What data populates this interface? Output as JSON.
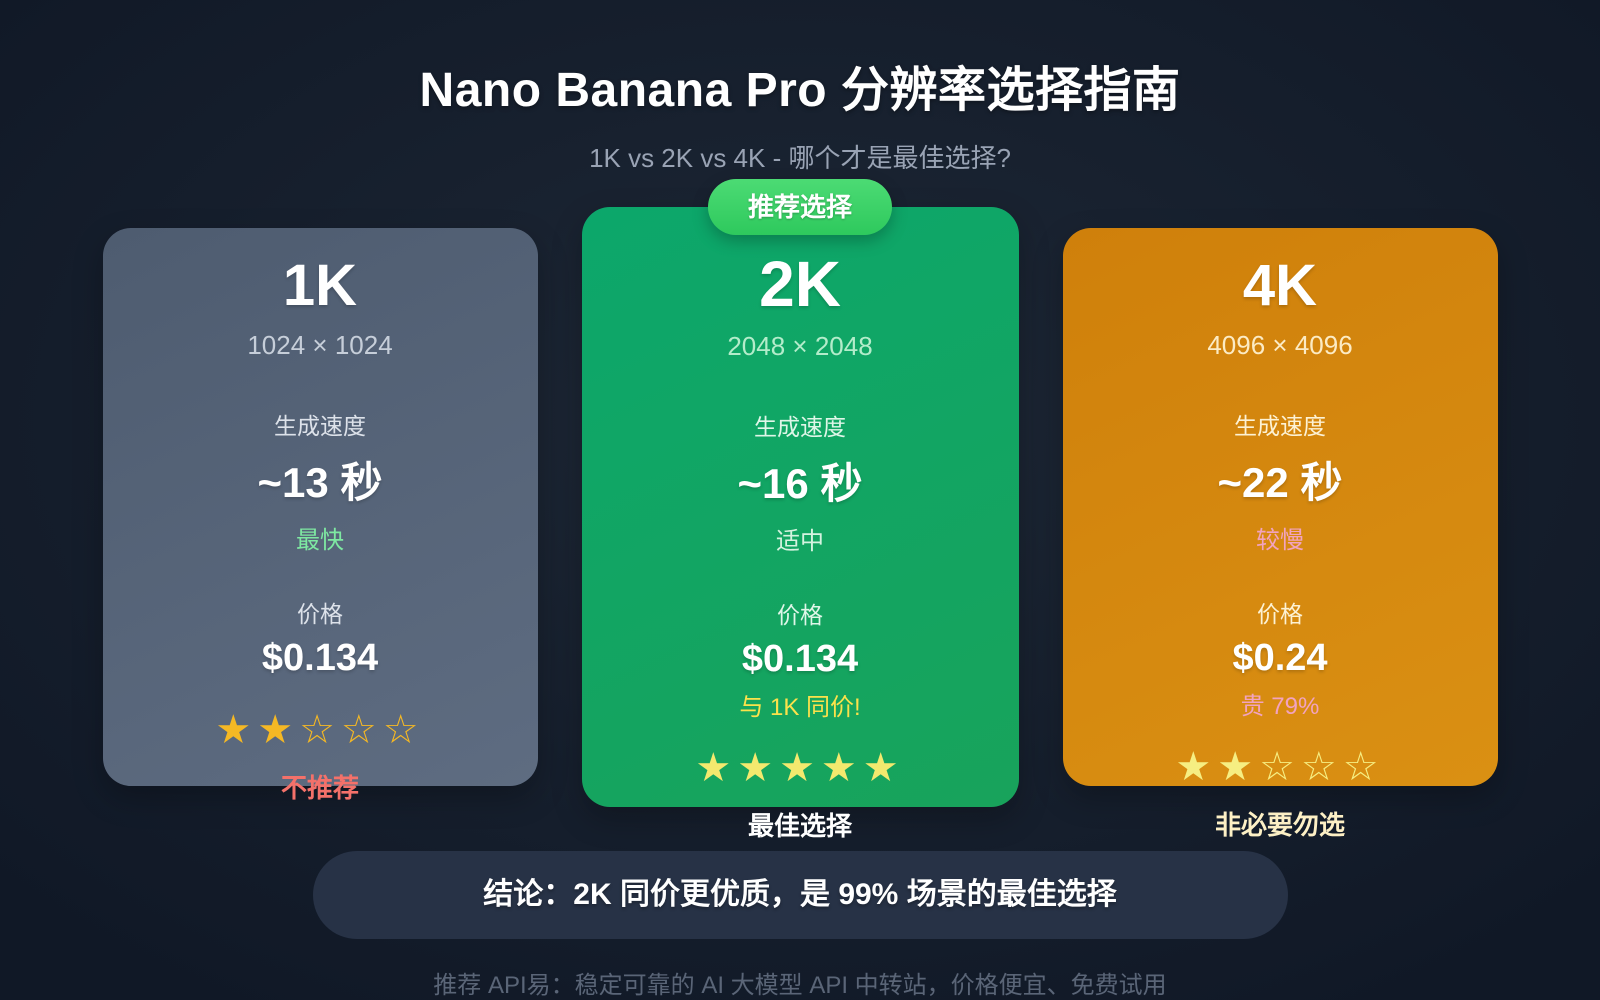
{
  "page": {
    "title": "Nano Banana Pro 分辨率选择指南",
    "subtitle": "1K vs 2K vs 4K - 哪个才是最佳选择?",
    "conclusion": "结论：2K 同价更优质，是 99% 场景的最佳选择",
    "footer": "推荐 API易：稳定可靠的 AI 大模型 API 中转站，价格便宜、免费试用"
  },
  "recommended_badge": "推荐选择",
  "cards": [
    {
      "name": "1K",
      "resolution": "1024 × 1024",
      "speed_label": "生成速度",
      "speed_value": "~13 秒",
      "speed_note": "最快",
      "price_label": "价格",
      "price_value": "$0.134",
      "stars": "★★☆☆☆",
      "verdict": "不推荐"
    },
    {
      "name": "2K",
      "resolution": "2048 × 2048",
      "speed_label": "生成速度",
      "speed_value": "~16 秒",
      "speed_note": "适中",
      "price_label": "价格",
      "price_value": "$0.134",
      "price_note": "与 1K 同价!",
      "stars": "★★★★★",
      "verdict": "最佳选择"
    },
    {
      "name": "4K",
      "resolution": "4096 × 4096",
      "speed_label": "生成速度",
      "speed_value": "~22 秒",
      "speed_note": "较慢",
      "price_label": "价格",
      "price_value": "$0.24",
      "price_note": "贵 79%",
      "stars": "★★☆☆☆",
      "verdict": "非必要勿选"
    }
  ],
  "colors": {
    "background": "#141d2b",
    "card_1k_slate": "#56647a",
    "card_2k_green": "#13a264",
    "card_4k_orange": "#d5870f",
    "badge_green": "#3bd167",
    "star_gold": "#f5b824",
    "star_pale_yellow": "#f3e96e",
    "fast_green": "#7ee8a2",
    "warn_red": "#f4716a",
    "same_price_yellow": "#fbe24b",
    "slow_pink": "#f2a3c0",
    "conclusion_bg": "#273246"
  }
}
